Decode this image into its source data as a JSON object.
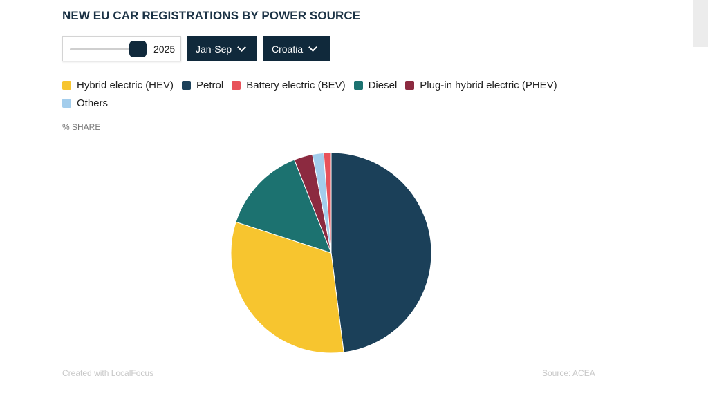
{
  "title": "NEW EU CAR REGISTRATIONS BY POWER SOURCE",
  "controls": {
    "year_slider": {
      "value": "2025"
    },
    "period_dropdown": {
      "label": "Jan-Sep"
    },
    "country_dropdown": {
      "label": "Croatia"
    }
  },
  "unit_label": "% SHARE",
  "footer": {
    "credit": "Created with LocalFocus",
    "source_label": "Source:",
    "source_value": "ACEA"
  },
  "chart_data": {
    "type": "pie",
    "title": "NEW EU CAR REGISTRATIONS BY POWER SOURCE",
    "unit": "% SHARE",
    "categories": [
      "Hybrid electric (HEV)",
      "Petrol",
      "Battery electric (BEV)",
      "Diesel",
      "Plug-in hybrid electric (PHEV)",
      "Others"
    ],
    "values": [
      32.0,
      48.0,
      1.2,
      14.0,
      3.0,
      1.8
    ],
    "colors": [
      "#f7c52f",
      "#1b4059",
      "#e8525a",
      "#1c7270",
      "#8c2a40",
      "#a3cdec"
    ],
    "draw_order": [
      "Petrol",
      "Hybrid electric (HEV)",
      "Diesel",
      "Plug-in hybrid electric (PHEV)",
      "Others",
      "Battery electric (BEV)"
    ],
    "legend_position": "top"
  }
}
